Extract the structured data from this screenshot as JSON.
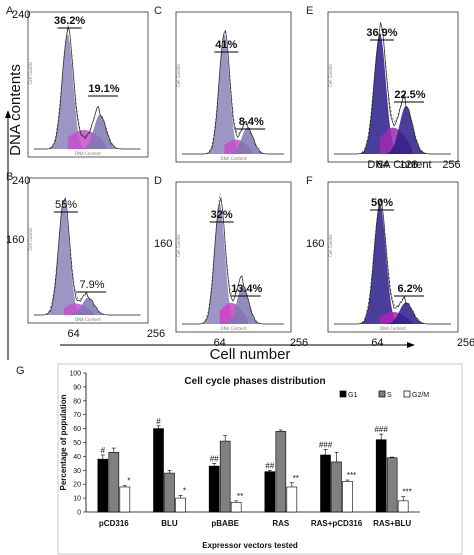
{
  "flow_panels": [
    {
      "id": "A",
      "y_tick": "240",
      "x_ticks": [],
      "peaks": [
        {
          "label": "36.2%",
          "bold": true
        },
        {
          "label": "19.1%",
          "bold": true
        }
      ],
      "peak_positions": [
        64,
        128
      ],
      "peak_heights": [
        1.0,
        0.3
      ]
    },
    {
      "id": "B",
      "y_tick": "240",
      "y_tick2": "160",
      "x_ticks": [
        "64",
        "256"
      ],
      "peaks": [
        {
          "label": "55%",
          "bold": false
        },
        {
          "label": "7.9%",
          "bold": false
        }
      ],
      "peak_positions": [
        64,
        128
      ],
      "peak_heights": [
        1.0,
        0.15
      ]
    },
    {
      "id": "C",
      "y_tick": "",
      "x_ticks": [],
      "peaks": [
        {
          "label": "41%",
          "bold": true
        },
        {
          "label": "8.4%",
          "bold": true
        }
      ],
      "peak_positions": [
        64,
        128
      ],
      "peak_heights": [
        1.0,
        0.22
      ]
    },
    {
      "id": "D",
      "y_tick": "",
      "y_tick2": "160",
      "x_ticks": [
        "64",
        "256"
      ],
      "peaks": [
        {
          "label": "32%",
          "bold": true
        },
        {
          "label": "13.4%",
          "bold": true
        }
      ],
      "peak_positions": [
        64,
        128
      ],
      "peak_heights": [
        1.0,
        0.32
      ]
    },
    {
      "id": "E",
      "y_tick": "",
      "x_ticks": [
        "64",
        "128",
        "256"
      ],
      "peaks": [
        {
          "label": "36.9%",
          "bold": true
        },
        {
          "label": "22.5%",
          "bold": true
        }
      ],
      "peak_positions": [
        64,
        128
      ],
      "peak_heights": [
        1.0,
        0.4
      ]
    },
    {
      "id": "F",
      "y_tick": "",
      "y_tick2": "160",
      "x_ticks": [
        "64",
        "256"
      ],
      "peaks": [
        {
          "label": "50%",
          "bold": true
        },
        {
          "label": "6.2%",
          "bold": true
        }
      ],
      "peak_positions": [
        64,
        128
      ],
      "peak_heights": [
        1.0,
        0.18
      ]
    }
  ],
  "flow_texts": {
    "y_axis_title": "DNA contents",
    "x_axis_title": "Cell number",
    "e_xlabel": "DNA Content",
    "small_ylabel": "Cell Counts",
    "small_xlabel": "DNA Content"
  },
  "chart_data": {
    "type": "bar",
    "panel": "G",
    "title": "Cell cycle phases distribution",
    "ylabel": "Percentage of population",
    "xlabel": "Expressor vectors tested",
    "ylim": [
      0,
      100
    ],
    "yticks": [
      0,
      10,
      20,
      30,
      40,
      50,
      60,
      70,
      80,
      90,
      100
    ],
    "categories": [
      "pCD316",
      "BLU",
      "pBABE",
      "RAS",
      "RAS+pCD316",
      "RAS+BLU"
    ],
    "series": [
      {
        "name": "G1",
        "color": "#000000",
        "values": [
          38,
          60,
          33,
          29,
          41,
          52
        ],
        "errors": [
          3,
          2,
          2,
          1,
          4,
          4
        ],
        "sig": [
          "#",
          "#",
          "##",
          "##",
          "###",
          "###"
        ]
      },
      {
        "name": "S",
        "color": "#808080",
        "values": [
          43,
          28,
          51,
          58,
          36,
          39
        ],
        "errors": [
          3,
          2,
          4,
          1,
          7,
          0.5
        ],
        "sig": [
          "",
          "",
          "",
          "",
          "",
          ""
        ]
      },
      {
        "name": "G2/M",
        "color": "#ffffff",
        "values": [
          18,
          10,
          7,
          18,
          22,
          8
        ],
        "errors": [
          1,
          2,
          1,
          3,
          1,
          3
        ],
        "sig": [
          "*",
          "*",
          "**",
          "**",
          "***",
          "***"
        ]
      }
    ],
    "legend_position": "top-right"
  }
}
